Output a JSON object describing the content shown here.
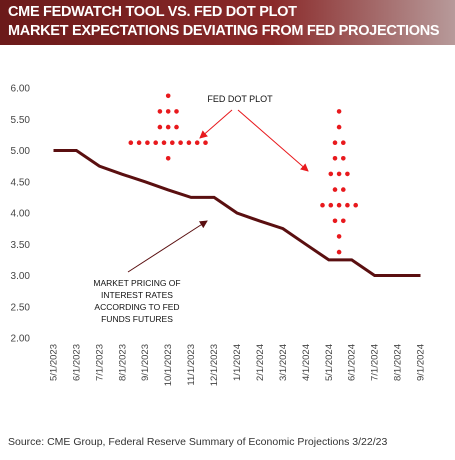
{
  "header": {
    "title_line1": "CME FEDWATCH TOOL VS. FED DOT PLOT",
    "title_line2": "MARKET EXPECTATIONS DEVIATING FROM FED PROJECTIONS"
  },
  "source": "Source:  CME Group, Federal Reserve Summary of Economic Projections  3/22/23",
  "colors": {
    "header_bg": "#7a2020",
    "market_line": "#5a0f10",
    "dots": "#e8191d",
    "annotation_arrow": "#e8191d"
  },
  "chart_data": {
    "type": "line",
    "yticks": [
      "2.00",
      "2.50",
      "3.00",
      "3.50",
      "4.00",
      "4.50",
      "5.00",
      "5.50",
      "6.00"
    ],
    "ylim": [
      2.0,
      6.0
    ],
    "xticks": [
      "5/1/2023",
      "6/1/2023",
      "7/1/2023",
      "8/1/2023",
      "9/1/2023",
      "10/1/2023",
      "11/1/2023",
      "12/1/2023",
      "1/1/2024",
      "2/1/2024",
      "3/1/2024",
      "4/1/2024",
      "5/1/2024",
      "6/1/2024",
      "7/1/2024",
      "8/1/2024",
      "9/1/2024"
    ],
    "grid": false,
    "series": [
      {
        "kind": "line",
        "x": [
          "5/1/2023",
          "6/1/2023",
          "7/1/2023",
          "8/1/2023",
          "9/1/2023",
          "10/1/2023",
          "11/1/2023",
          "12/1/2023",
          "1/1/2024",
          "2/1/2024",
          "3/1/2024",
          "4/1/2024",
          "5/1/2024",
          "6/1/2024",
          "7/1/2024",
          "8/1/2024",
          "9/1/2024"
        ],
        "y": [
          5.0,
          5.0,
          4.75,
          4.62,
          4.5,
          4.37,
          4.25,
          4.25,
          4.0,
          3.87,
          3.75,
          3.5,
          3.25,
          3.25,
          3.0,
          3.0,
          3.0
        ]
      },
      {
        "kind": "dots",
        "x_center": "10/1/2023",
        "rows": [
          {
            "y": 5.875,
            "count": 1
          },
          {
            "y": 5.625,
            "count": 3
          },
          {
            "y": 5.375,
            "count": 3
          },
          {
            "y": 5.125,
            "count": 10
          },
          {
            "y": 4.875,
            "count": 1
          }
        ]
      },
      {
        "kind": "dots",
        "x_center": "5/15/2024",
        "rows": [
          {
            "y": 5.625,
            "count": 1
          },
          {
            "y": 5.375,
            "count": 1
          },
          {
            "y": 5.125,
            "count": 2
          },
          {
            "y": 4.875,
            "count": 2
          },
          {
            "y": 4.625,
            "count": 3
          },
          {
            "y": 4.375,
            "count": 2
          },
          {
            "y": 4.125,
            "count": 5
          },
          {
            "y": 3.875,
            "count": 2
          },
          {
            "y": 3.625,
            "count": 1
          },
          {
            "y": 3.375,
            "count": 1
          }
        ]
      }
    ],
    "annotations": [
      {
        "text": "FED DOT PLOT"
      },
      {
        "lines": [
          "MARKET PRICING OF",
          "INTEREST RATES",
          "ACCORDING TO FED",
          "FUNDS FUTURES"
        ]
      }
    ]
  }
}
